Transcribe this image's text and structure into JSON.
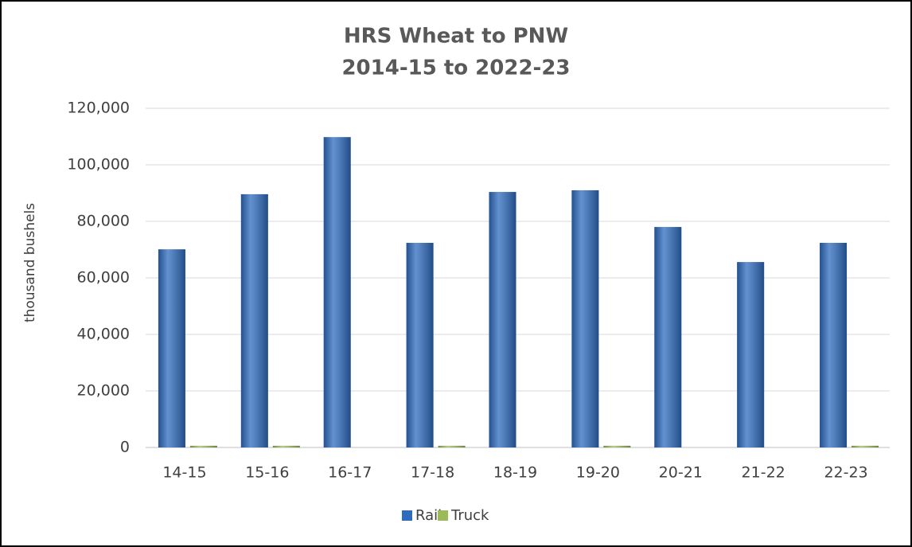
{
  "chart_data": {
    "type": "bar",
    "title": "HRS Wheat to PNW",
    "subtitle": "2014-15 to 2022-23",
    "y_label": "thousand bushels",
    "categories": [
      "14-15",
      "15-16",
      "16-17",
      "17-18",
      "18-19",
      "19-20",
      "20-21",
      "21-22",
      "22-23"
    ],
    "series": [
      {
        "name": "Rail",
        "color": "#2f6cc0",
        "values": [
          70100,
          89600,
          109800,
          72400,
          90400,
          91000,
          78000,
          65600,
          72400
        ]
      },
      {
        "name": "Truck",
        "color": "#9bbb59",
        "values": [
          600,
          600,
          0,
          600,
          0,
          600,
          0,
          0,
          600
        ]
      }
    ],
    "ylim": [
      0,
      120000
    ],
    "yticks": [
      0,
      {
        "value": 20000,
        "label": "20,000"
      },
      {
        "value": 40000,
        "label": "40,000"
      },
      {
        "value": 60000,
        "label": "60,000"
      },
      {
        "value": 80000,
        "label": "80,000"
      },
      {
        "value": 100000,
        "label": "100,000"
      },
      {
        "value": 120000,
        "label": "120,000"
      }
    ],
    "grid": true,
    "legend": "bottom"
  }
}
